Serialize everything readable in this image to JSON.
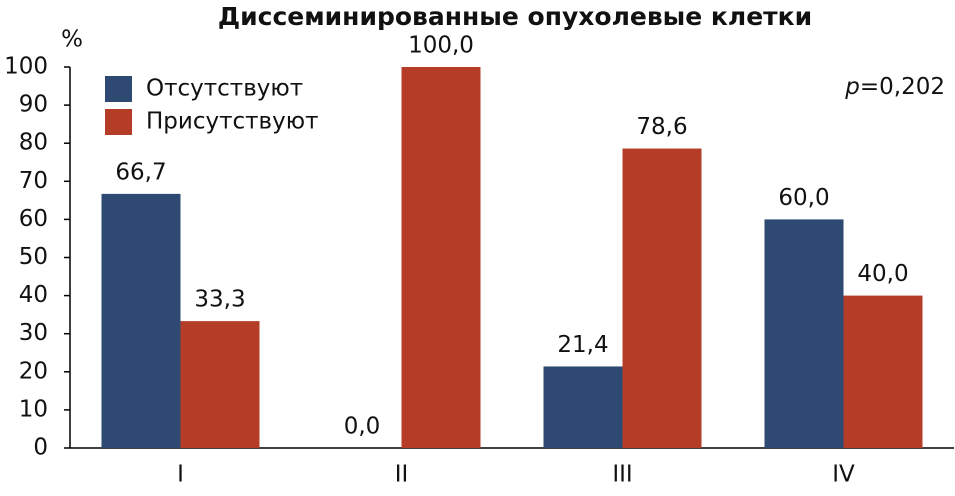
{
  "chart_data": {
    "type": "bar",
    "title": "Диссеминированные опухолевые клетки",
    "ylabel": "%",
    "annotation_var": "p",
    "annotation_value": "=0,202",
    "categories": [
      "I",
      "II",
      "III",
      "IV"
    ],
    "series": [
      {
        "name": "Отсутствуют",
        "color": "#2e4a72",
        "values": [
          66.7,
          0.0,
          21.4,
          60.0
        ],
        "value_labels": [
          "66,7",
          "0,0",
          "21,4",
          "60,0"
        ]
      },
      {
        "name": "Присутствуют",
        "color": "#b53d28",
        "values": [
          33.3,
          100.0,
          78.6,
          40.0
        ],
        "value_labels": [
          "33,3",
          "100,0",
          "78,6",
          "40,0"
        ]
      }
    ],
    "ylim": [
      0,
      100
    ],
    "yticks": [
      0,
      10,
      20,
      30,
      40,
      50,
      60,
      70,
      80,
      90,
      100
    ],
    "grid": false,
    "legend": "upper-left"
  }
}
